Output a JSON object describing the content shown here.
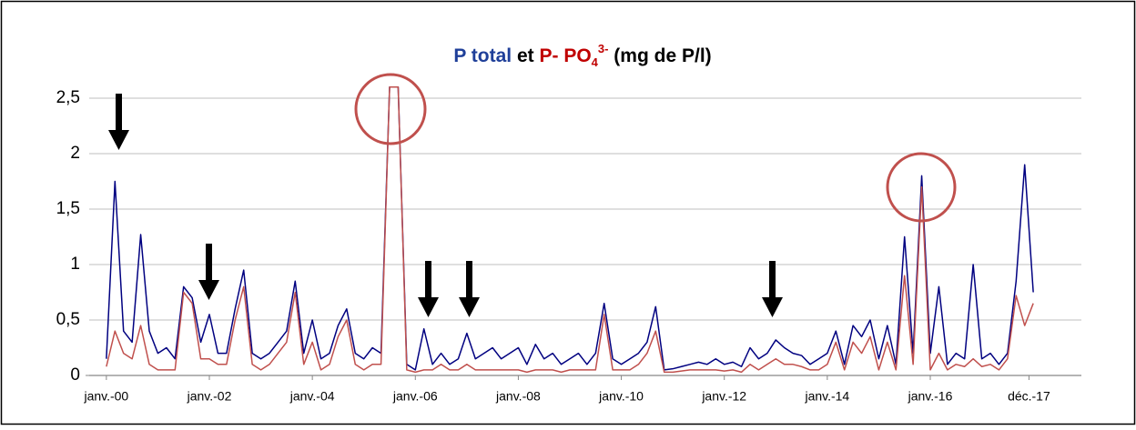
{
  "chart_data": {
    "type": "line",
    "title": [
      {
        "text": "P  total",
        "color": "#1f3f99"
      },
      {
        "text": " et ",
        "color": "#000000"
      },
      {
        "text": "P- PO",
        "color": "#c00000"
      },
      {
        "text": "4",
        "color": "#c00000",
        "shift": "sub"
      },
      {
        "text": "3-",
        "color": "#c00000",
        "shift": "super"
      },
      {
        "text": " (mg de P/l)",
        "color": "#000000"
      }
    ],
    "x": [
      "2000-01",
      "2000-03",
      "2000-05",
      "2000-07",
      "2000-09",
      "2000-11",
      "2001-01",
      "2001-03",
      "2001-05",
      "2001-07",
      "2001-09",
      "2001-11",
      "2002-01",
      "2002-03",
      "2002-05",
      "2002-07",
      "2002-09",
      "2002-11",
      "2003-01",
      "2003-03",
      "2003-05",
      "2003-07",
      "2003-09",
      "2003-11",
      "2004-01",
      "2004-03",
      "2004-05",
      "2004-07",
      "2004-09",
      "2004-11",
      "2005-01",
      "2005-03",
      "2005-05",
      "2005-07",
      "2005-09",
      "2005-11",
      "2006-01",
      "2006-03",
      "2006-05",
      "2006-07",
      "2006-09",
      "2006-11",
      "2007-01",
      "2007-03",
      "2007-05",
      "2007-07",
      "2007-09",
      "2007-11",
      "2008-01",
      "2008-03",
      "2008-05",
      "2008-07",
      "2008-09",
      "2008-11",
      "2009-01",
      "2009-03",
      "2009-05",
      "2009-07",
      "2009-09",
      "2009-11",
      "2010-01",
      "2010-03",
      "2010-05",
      "2010-07",
      "2010-09",
      "2010-11",
      "2011-01",
      "2011-03",
      "2011-05",
      "2011-07",
      "2011-09",
      "2011-11",
      "2012-01",
      "2012-03",
      "2012-05",
      "2012-07",
      "2012-09",
      "2012-11",
      "2013-01",
      "2013-03",
      "2013-05",
      "2013-07",
      "2013-09",
      "2013-11",
      "2014-01",
      "2014-03",
      "2014-05",
      "2014-07",
      "2014-09",
      "2014-11",
      "2015-01",
      "2015-03",
      "2015-05",
      "2015-07",
      "2015-09",
      "2015-11",
      "2016-01",
      "2016-03",
      "2016-05",
      "2016-07",
      "2016-09",
      "2016-11",
      "2017-01",
      "2017-03",
      "2017-05",
      "2017-07",
      "2017-09",
      "2017-11",
      "2018-01"
    ],
    "series": [
      {
        "name": "P total",
        "color": "#000080",
        "values": [
          0.15,
          1.75,
          0.4,
          0.3,
          1.27,
          0.4,
          0.2,
          0.25,
          0.15,
          0.8,
          0.7,
          0.3,
          0.55,
          0.2,
          0.2,
          0.6,
          0.95,
          0.2,
          0.15,
          0.2,
          0.3,
          0.4,
          0.85,
          0.2,
          0.5,
          0.15,
          0.2,
          0.45,
          0.6,
          0.2,
          0.15,
          0.25,
          0.2,
          2.6,
          2.6,
          0.1,
          0.05,
          0.42,
          0.1,
          0.2,
          0.1,
          0.15,
          0.38,
          0.15,
          0.2,
          0.25,
          0.15,
          0.2,
          0.25,
          0.1,
          0.28,
          0.15,
          0.2,
          0.1,
          0.15,
          0.2,
          0.1,
          0.2,
          0.65,
          0.15,
          0.1,
          0.15,
          0.2,
          0.3,
          0.62,
          0.05,
          0.06,
          0.08,
          0.1,
          0.12,
          0.1,
          0.15,
          0.1,
          0.12,
          0.08,
          0.25,
          0.15,
          0.2,
          0.32,
          0.25,
          0.2,
          0.18,
          0.1,
          0.15,
          0.2,
          0.4,
          0.1,
          0.45,
          0.35,
          0.5,
          0.15,
          0.45,
          0.1,
          1.25,
          0.2,
          1.8,
          0.2,
          0.8,
          0.1,
          0.2,
          0.15,
          1.0,
          0.15,
          0.2,
          0.1,
          0.2,
          0.85,
          1.9,
          0.75
        ]
      },
      {
        "name": "P- PO4 3-",
        "color": "#c0504d",
        "values": [
          0.08,
          0.4,
          0.2,
          0.15,
          0.45,
          0.1,
          0.05,
          0.05,
          0.05,
          0.75,
          0.65,
          0.15,
          0.15,
          0.1,
          0.1,
          0.5,
          0.8,
          0.1,
          0.05,
          0.1,
          0.2,
          0.3,
          0.75,
          0.1,
          0.3,
          0.05,
          0.1,
          0.35,
          0.5,
          0.1,
          0.05,
          0.1,
          0.1,
          2.6,
          2.6,
          0.05,
          0.03,
          0.05,
          0.05,
          0.1,
          0.05,
          0.05,
          0.1,
          0.05,
          0.05,
          0.05,
          0.05,
          0.05,
          0.05,
          0.03,
          0.05,
          0.05,
          0.05,
          0.03,
          0.05,
          0.05,
          0.05,
          0.05,
          0.55,
          0.05,
          0.05,
          0.05,
          0.1,
          0.2,
          0.4,
          0.03,
          0.03,
          0.04,
          0.05,
          0.05,
          0.05,
          0.05,
          0.04,
          0.05,
          0.03,
          0.1,
          0.05,
          0.1,
          0.15,
          0.1,
          0.1,
          0.08,
          0.05,
          0.05,
          0.1,
          0.3,
          0.05,
          0.3,
          0.2,
          0.35,
          0.05,
          0.3,
          0.05,
          0.9,
          0.1,
          1.7,
          0.05,
          0.2,
          0.05,
          0.1,
          0.08,
          0.15,
          0.08,
          0.1,
          0.05,
          0.15,
          0.72,
          0.45,
          0.65
        ]
      }
    ],
    "xlim": [
      "1999-09",
      "2018-12"
    ],
    "xticks": [
      {
        "value": "2000-01",
        "label": "janv.-00"
      },
      {
        "value": "2002-01",
        "label": "janv.-02"
      },
      {
        "value": "2004-01",
        "label": "janv.-04"
      },
      {
        "value": "2006-01",
        "label": "janv.-06"
      },
      {
        "value": "2008-01",
        "label": "janv.-08"
      },
      {
        "value": "2010-01",
        "label": "janv.-10"
      },
      {
        "value": "2012-01",
        "label": "janv.-12"
      },
      {
        "value": "2014-01",
        "label": "janv.-14"
      },
      {
        "value": "2016-01",
        "label": "janv.-16"
      },
      {
        "value": "2017-12",
        "label": "déc.-17"
      }
    ],
    "ylim": [
      0,
      2.6
    ],
    "yticks": [
      0,
      {
        "value": 0.5,
        "label": "0,5"
      },
      1,
      {
        "value": 1.5,
        "label": "1,5"
      },
      2,
      {
        "value": 2.5,
        "label": "2,5"
      }
    ],
    "grid": true
  }
}
